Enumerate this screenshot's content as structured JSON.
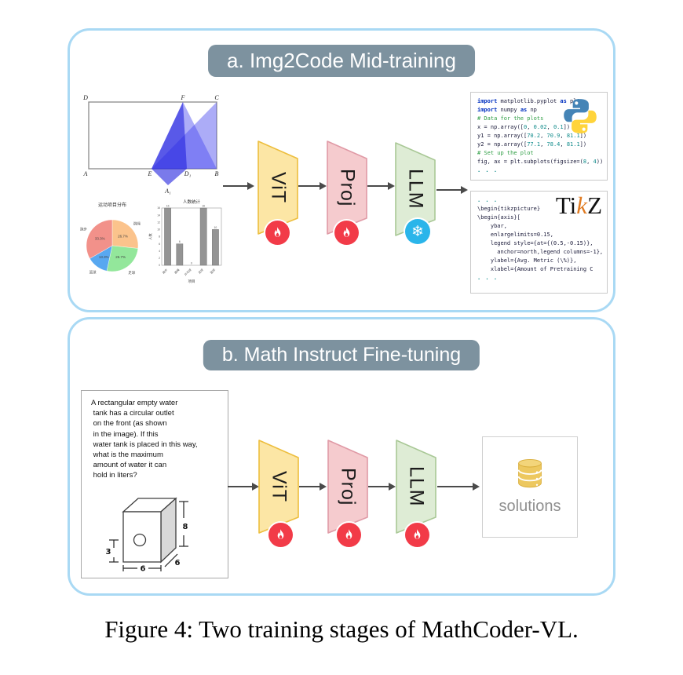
{
  "caption": "Figure 4: Two training stages of MathCoder-VL.",
  "icons": {
    "snowflake_glyph": "❄"
  },
  "colors": {
    "panel_border": "#a9d9f4",
    "title_bg": "#7d929f",
    "arrow": "#4a4a4a",
    "vit_fill": "#fce6a5",
    "vit_stroke": "#edbe3e",
    "proj_fill": "#f5cbce",
    "proj_stroke": "#e09aa6",
    "llm_fill": "#deecd5",
    "llm_stroke": "#a9c896",
    "fire_red": "#f23b48",
    "snow_blue": "#2ab5ea",
    "db_gold": "#edc85f",
    "db_gold_dark": "#d9ad39",
    "geometry_blue": "#3a3ae8",
    "tikz_orange": "#e07b22"
  },
  "panel_a": {
    "title": "a. Img2Code Mid-training",
    "geometry_labels": [
      "D",
      "F",
      "C",
      "A",
      "E",
      "D₁",
      "B",
      "A₁"
    ],
    "blocks": [
      {
        "label": "ViT",
        "state": "trainable"
      },
      {
        "label": "Proj",
        "state": "trainable"
      },
      {
        "label": "LLM",
        "state": "frozen"
      }
    ],
    "python_code": [
      "import matplotlib.pyplot as plt",
      "import numpy as np",
      "# Data for the plots",
      "x = np.array([0, 0.02, 0.1])",
      "y1 = np.array([70.2, 70.9, 81.1])",
      "y2 = np.array([77.1, 78.4, 81.1])",
      "# Set up the plot",
      "fig, ax = plt.subplots(figsize=(8, 4))",
      ". . ."
    ],
    "tikz_code": [
      ". . .",
      "\\begin{tikzpicture}",
      "\\begin{axis}[",
      "    ybar,",
      "    enlargelimits=0.15,",
      "    legend style={at={(0.5,-0.15)},",
      "      anchor=north,legend columns=-1},",
      "    ylabel={Avg. Metric (\\%)},",
      "    xlabel={Amount of Pretraining C",
      ". . ."
    ],
    "tikz_logo": {
      "pre": "Ti",
      "k": "k",
      "post": "Z"
    }
  },
  "chart_data": [
    {
      "type": "pie",
      "title": "运动项目分布",
      "start_angle_deg": 90,
      "direction": "clockwise",
      "slices": [
        {
          "label": "跳绳",
          "value": 26.7,
          "color": "#fbc38c"
        },
        {
          "label": "足球",
          "value": 26.7,
          "color": "#93e79b"
        },
        {
          "label": "篮球",
          "value": 13.3,
          "color": "#58a8f0"
        },
        {
          "label": "跑步",
          "value": 33.3,
          "color": "#f2918a"
        }
      ]
    },
    {
      "type": "bar",
      "title": "人数统计",
      "xlabel": "项目",
      "ylabel": "人数",
      "categories": [
        "跑步",
        "跳绳",
        "乒乓球",
        "足球",
        "篮球"
      ],
      "values": [
        16,
        6,
        0,
        16,
        10
      ],
      "ylim": [
        0,
        16
      ],
      "ytick_step": 2,
      "bar_color": "#949494"
    }
  ],
  "panel_b": {
    "title": "b. Math Instruct Fine-tuning",
    "problem_lines": [
      "A rectangular empty water",
      " tank has a circular outlet",
      " on the front (as shown",
      " in the image). If this",
      " water tank is placed in this way,",
      " what is the maximum",
      " amount of water it can",
      " hold in liters?"
    ],
    "tank_dims": {
      "height": "8",
      "depth": "6",
      "width": "6",
      "outlet": "3"
    },
    "blocks": [
      {
        "label": "ViT",
        "state": "trainable"
      },
      {
        "label": "Proj",
        "state": "trainable"
      },
      {
        "label": "LLM",
        "state": "trainable"
      }
    ],
    "solutions_label": "solutions"
  }
}
